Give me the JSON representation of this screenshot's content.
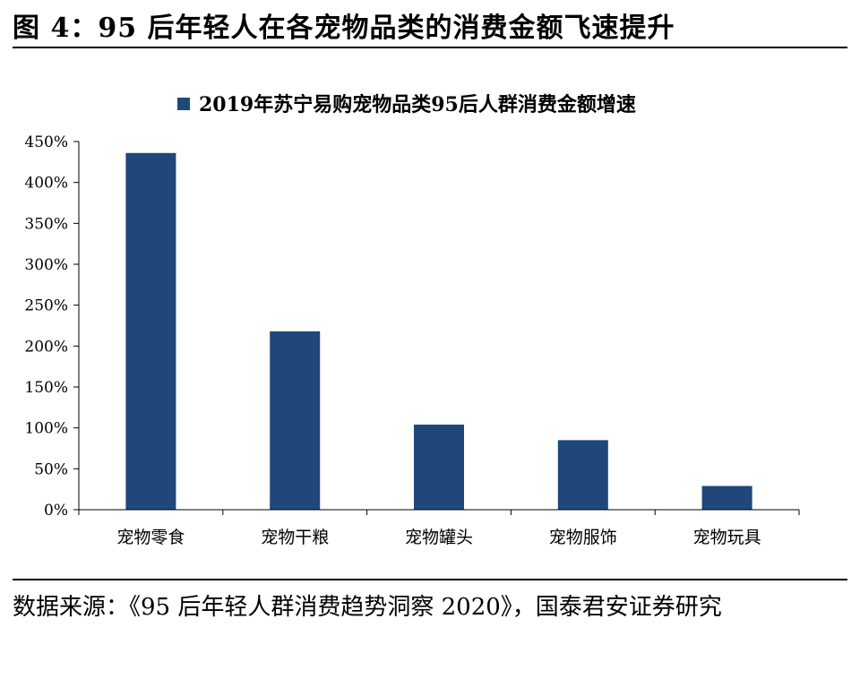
{
  "figure": {
    "title": "图 4：95 后年轻人在各宠物品类的消费金额飞速提升",
    "source": "数据来源：《95 后年轻人群消费趋势洞察 2020》，国泰君安证券研究"
  },
  "chart_data": {
    "type": "bar",
    "categories": [
      "宠物零食",
      "宠物干粮",
      "宠物罐头",
      "宠物服饰",
      "宠物玩具"
    ],
    "series": [
      {
        "name": "2019年苏宁易购宠物品类95后人群消费金额增速",
        "values": [
          436,
          218,
          104,
          85,
          29
        ],
        "color": "#1f477a"
      }
    ],
    "ylim": [
      0,
      450
    ],
    "yticks": [
      0,
      50,
      100,
      150,
      200,
      250,
      300,
      350,
      400,
      450
    ],
    "ytick_labels": [
      "0%",
      "50%",
      "100%",
      "150%",
      "200%",
      "250%",
      "300%",
      "350%",
      "400%",
      "450%"
    ],
    "legend_position": "top-center",
    "grid": false
  }
}
